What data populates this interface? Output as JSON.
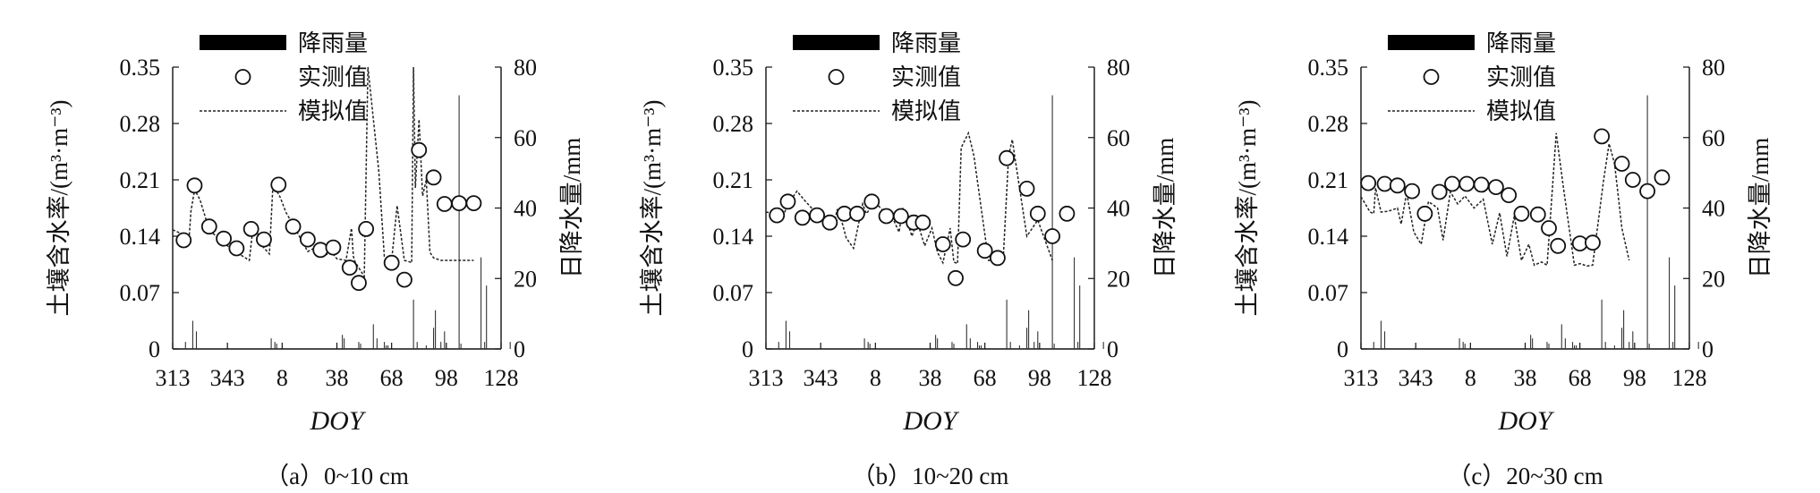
{
  "legend": {
    "rain": "降雨量",
    "observed": "实测值",
    "simulated": "模拟值"
  },
  "chart_data": [
    {
      "type": "line",
      "caption": "（a）0~10 cm",
      "xlabel": "DOY",
      "ylabel": "土壤含水率/(m³·m⁻³)",
      "y2label": "日降水量/mm",
      "xticks": [
        "313",
        "343",
        "8",
        "38",
        "68",
        "98",
        "128"
      ],
      "ylim": [
        0,
        0.35
      ],
      "y2lim": [
        0,
        80
      ],
      "yticks": [
        "0",
        "0.07",
        "0.14",
        "0.21",
        "0.28",
        "0.35"
      ],
      "y2ticks": [
        "0",
        "20",
        "40",
        "60",
        "80"
      ],
      "series": [
        {
          "name": "降雨量",
          "kind": "bar",
          "axis": "y2",
          "x": [
            320,
            324,
            326,
            367,
            369,
            370,
            406,
            407,
            415,
            416,
            423,
            425,
            429,
            430,
            431,
            445,
            447,
            452,
            456,
            457,
            460,
            462,
            470,
            471,
            482,
            484,
            485,
            498
          ],
          "values": [
            2,
            8,
            5,
            3,
            2,
            1.5,
            4,
            3,
            2,
            1.5,
            7,
            3,
            2,
            1,
            1,
            14,
            2,
            1,
            6,
            11,
            2,
            5,
            72,
            1.5,
            26,
            2,
            18,
            2
          ]
        },
        {
          "name": "实测值",
          "kind": "scatter",
          "x": [
            319,
            325,
            333,
            341,
            348,
            356,
            363,
            371,
            379,
            387,
            394,
            401,
            410,
            415,
            419,
            433,
            440,
            448,
            456,
            462,
            470,
            478
          ],
          "values": [
            0.135,
            0.203,
            0.152,
            0.137,
            0.125,
            0.149,
            0.136,
            0.204,
            0.152,
            0.136,
            0.123,
            0.126,
            0.101,
            0.082,
            0.149,
            0.107,
            0.086,
            0.247,
            0.213,
            0.18,
            0.181,
            0.181
          ]
        },
        {
          "name": "模拟值",
          "kind": "line",
          "x": [
            313,
            318,
            322,
            323,
            325,
            328,
            333,
            340,
            348,
            355,
            357,
            360,
            362,
            366,
            368,
            372,
            375,
            380,
            387,
            393,
            395,
            400,
            403,
            408,
            411,
            412,
            413,
            418,
            420,
            426,
            429,
            431,
            433,
            436,
            440,
            443,
            444,
            445,
            446,
            448,
            450,
            452,
            454,
            456,
            460,
            465,
            478
          ],
          "values": [
            0.148,
            0.143,
            0.137,
            0.171,
            0.198,
            0.185,
            0.148,
            0.133,
            0.12,
            0.11,
            0.15,
            0.142,
            0.128,
            0.118,
            0.205,
            0.188,
            0.17,
            0.15,
            0.121,
            0.128,
            0.115,
            0.12,
            0.112,
            0.11,
            0.15,
            0.115,
            0.108,
            0.09,
            0.35,
            0.22,
            0.115,
            0.112,
            0.11,
            0.178,
            0.11,
            0.108,
            0.107,
            0.35,
            0.2,
            0.285,
            0.19,
            0.21,
            0.12,
            0.113,
            0.11,
            0.11,
            0.11
          ]
        }
      ]
    },
    {
      "type": "line",
      "caption": "（b）10~20 cm",
      "xlabel": "DOY",
      "ylabel": "土壤含水率/(m³·m⁻³)",
      "y2label": "日降水量/mm",
      "xticks": [
        "313",
        "343",
        "8",
        "38",
        "68",
        "98",
        "128"
      ],
      "ylim": [
        0,
        0.35
      ],
      "y2lim": [
        0,
        80
      ],
      "yticks": [
        "0",
        "0.07",
        "0.14",
        "0.21",
        "0.28",
        "0.35"
      ],
      "y2ticks": [
        "0",
        "20",
        "40",
        "60",
        "80"
      ],
      "series": [
        {
          "name": "降雨量",
          "kind": "bar",
          "axis": "y2",
          "x": [
            320,
            324,
            326,
            367,
            369,
            370,
            406,
            407,
            415,
            416,
            423,
            425,
            429,
            430,
            431,
            445,
            447,
            452,
            456,
            457,
            460,
            462,
            470,
            471,
            482,
            484,
            485,
            498
          ],
          "values": [
            2,
            8,
            5,
            3,
            2,
            1.5,
            4,
            3,
            2,
            1.5,
            7,
            3,
            2,
            1,
            1,
            14,
            2,
            1,
            6,
            11,
            2,
            5,
            72,
            1.5,
            26,
            2,
            18,
            2
          ]
        },
        {
          "name": "实测值",
          "kind": "scatter",
          "x": [
            319,
            325,
            333,
            341,
            348,
            356,
            363,
            371,
            379,
            387,
            394,
            399,
            410,
            417,
            421,
            433,
            440,
            445,
            456,
            462,
            470,
            478
          ],
          "values": [
            0.166,
            0.183,
            0.163,
            0.166,
            0.157,
            0.168,
            0.168,
            0.183,
            0.165,
            0.165,
            0.157,
            0.157,
            0.13,
            0.088,
            0.136,
            0.122,
            0.113,
            0.237,
            0.199,
            0.168,
            0.14,
            0.168
          ]
        },
        {
          "name": "模拟值",
          "kind": "line",
          "x": [
            313,
            318,
            322,
            326,
            330,
            334,
            338,
            345,
            350,
            352,
            355,
            357,
            361,
            366,
            368,
            373,
            377,
            382,
            386,
            388,
            393,
            396,
            400,
            404,
            407,
            410,
            414,
            416,
            418,
            420,
            424,
            427,
            435,
            437,
            440,
            443,
            446,
            448,
            450,
            456,
            462,
            470
          ],
          "values": [
            0.17,
            0.168,
            0.164,
            0.183,
            0.196,
            0.185,
            0.175,
            0.162,
            0.154,
            0.172,
            0.155,
            0.138,
            0.125,
            0.18,
            0.168,
            0.182,
            0.172,
            0.165,
            0.145,
            0.175,
            0.14,
            0.158,
            0.128,
            0.15,
            0.12,
            0.107,
            0.15,
            0.108,
            0.106,
            0.25,
            0.268,
            0.24,
            0.11,
            0.11,
            0.108,
            0.11,
            0.24,
            0.26,
            0.23,
            0.14,
            0.16,
            0.11
          ]
        }
      ]
    },
    {
      "type": "line",
      "caption": "（c）20~30 cm",
      "xlabel": "DOY",
      "ylabel": "土壤含水率/(m³·m⁻³)",
      "y2label": "日降水量/mm",
      "xticks": [
        "313",
        "343",
        "8",
        "38",
        "68",
        "98",
        "128"
      ],
      "ylim": [
        0,
        0.35
      ],
      "y2lim": [
        0,
        80
      ],
      "yticks": [
        "0",
        "0.07",
        "0.14",
        "0.21",
        "0.28",
        "0.35"
      ],
      "y2ticks": [
        "0",
        "20",
        "40",
        "60",
        "80"
      ],
      "series": [
        {
          "name": "降雨量",
          "kind": "bar",
          "axis": "y2",
          "x": [
            320,
            324,
            326,
            367,
            369,
            370,
            406,
            407,
            415,
            416,
            423,
            425,
            429,
            430,
            431,
            445,
            447,
            452,
            456,
            457,
            460,
            462,
            470,
            471,
            482,
            484,
            485,
            498
          ],
          "values": [
            2,
            8,
            5,
            3,
            2,
            1.5,
            4,
            3,
            2,
            1.5,
            7,
            3,
            2,
            1,
            1,
            14,
            2,
            1,
            6,
            11,
            2,
            5,
            72,
            1.5,
            26,
            2,
            18,
            2
          ]
        },
        {
          "name": "实测值",
          "kind": "scatter",
          "x": [
            317,
            326,
            333,
            341,
            348,
            356,
            363,
            371,
            379,
            387,
            394,
            401,
            410,
            416,
            421,
            433,
            440,
            445,
            456,
            462,
            470,
            478
          ],
          "values": [
            0.206,
            0.205,
            0.203,
            0.196,
            0.168,
            0.195,
            0.205,
            0.205,
            0.204,
            0.201,
            0.191,
            0.168,
            0.167,
            0.15,
            0.128,
            0.131,
            0.132,
            0.264,
            0.23,
            0.21,
            0.196,
            0.213
          ]
        },
        {
          "name": "模拟值",
          "kind": "line",
          "x": [
            313,
            318,
            320,
            321,
            324,
            328,
            333,
            335,
            338,
            342,
            346,
            350,
            355,
            358,
            362,
            366,
            370,
            375,
            380,
            385,
            389,
            393,
            397,
            401,
            405,
            408,
            412,
            415,
            420,
            424,
            430,
            433,
            437,
            440,
            446,
            449,
            452,
            456,
            460
          ],
          "values": [
            0.189,
            0.17,
            0.168,
            0.2,
            0.17,
            0.171,
            0.175,
            0.155,
            0.194,
            0.145,
            0.13,
            0.183,
            0.175,
            0.135,
            0.195,
            0.18,
            0.19,
            0.175,
            0.186,
            0.13,
            0.169,
            0.115,
            0.165,
            0.11,
            0.13,
            0.104,
            0.108,
            0.104,
            0.268,
            0.2,
            0.104,
            0.106,
            0.103,
            0.104,
            0.21,
            0.255,
            0.23,
            0.15,
            0.11
          ]
        }
      ]
    }
  ]
}
